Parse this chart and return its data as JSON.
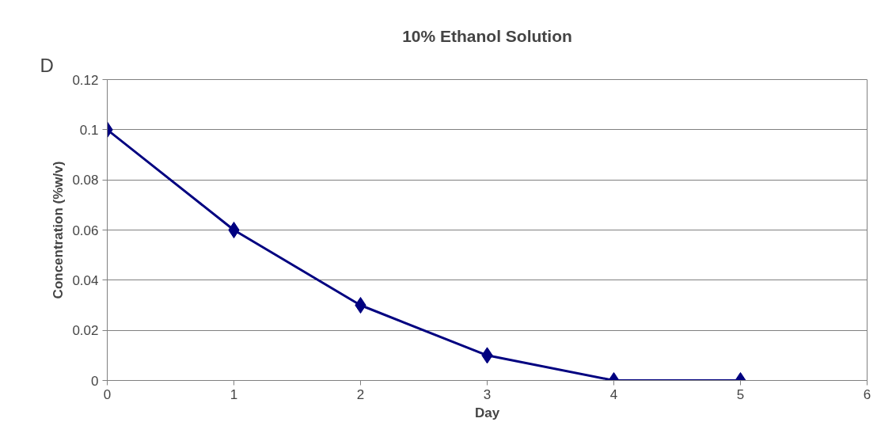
{
  "chart_data": {
    "type": "line",
    "title": "10% Ethanol Solution",
    "xlabel": "Day",
    "ylabel": "Concentration (%w/v)",
    "annotations": [
      "D"
    ],
    "x": [
      0,
      1,
      2,
      3,
      4,
      5
    ],
    "series": [
      {
        "color": "#000080",
        "values": [
          0.1,
          0.06,
          0.03,
          0.01,
          0,
          0
        ]
      }
    ],
    "xlim": [
      0,
      6
    ],
    "xticks": [
      0,
      1,
      2,
      3,
      4,
      5,
      6
    ],
    "ylim": [
      0,
      0.12
    ],
    "yticks": [
      0,
      0.02,
      0.04,
      0.06,
      0.08,
      0.1,
      0.12
    ],
    "grid": "y",
    "marker": "diamond",
    "line_style": "solid"
  }
}
